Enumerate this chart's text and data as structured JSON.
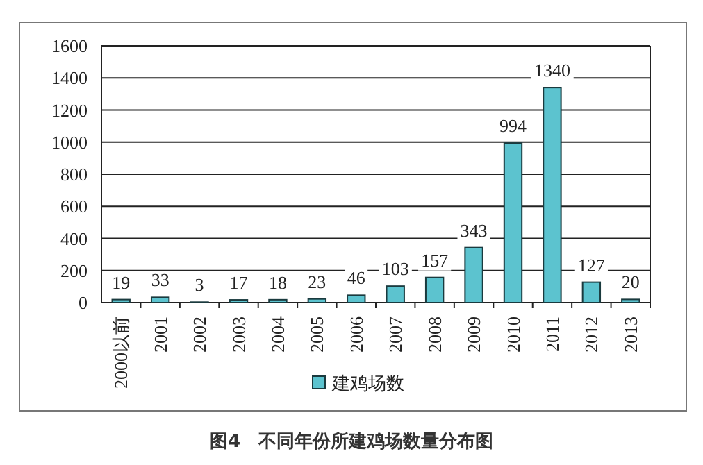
{
  "chart_data": {
    "type": "bar",
    "title": "图4　不同年份所建鸡场数量分布图",
    "categories": [
      "2000以前",
      "2001",
      "2002",
      "2003",
      "2004",
      "2005",
      "2006",
      "2007",
      "2008",
      "2009",
      "2010",
      "2011",
      "2012",
      "2013"
    ],
    "series": [
      {
        "name": "建鸡场数",
        "color": "#5cc3cf",
        "values": [
          19,
          33,
          3,
          17,
          18,
          23,
          46,
          103,
          157,
          343,
          994,
          1340,
          127,
          20
        ]
      }
    ],
    "ylim": [
      0,
      1600
    ],
    "yticks": [
      0,
      200,
      400,
      600,
      800,
      1000,
      1200,
      1400,
      1600
    ],
    "grid": "y",
    "legend": "bottom",
    "data_labels": true
  }
}
